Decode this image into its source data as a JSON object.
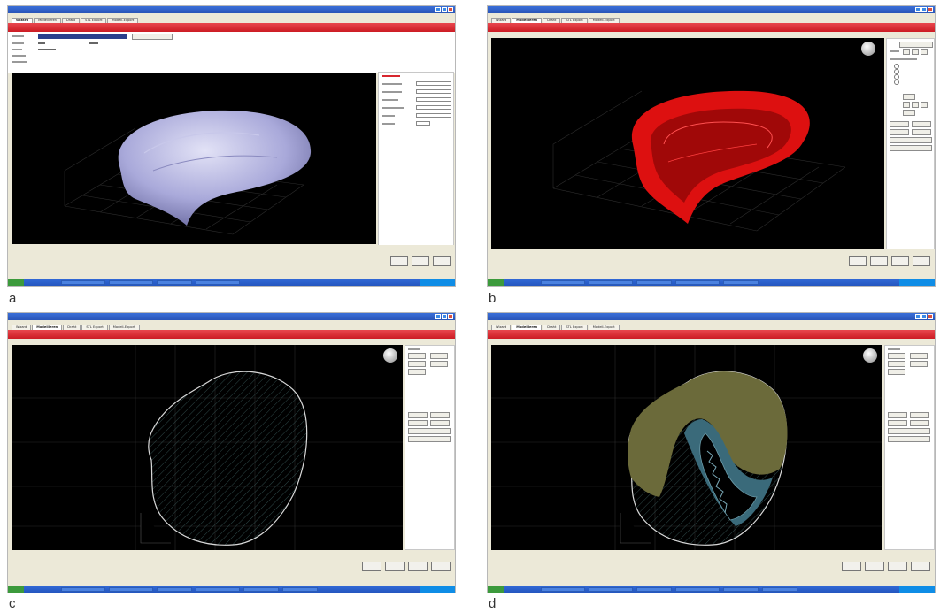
{
  "labels": [
    "a",
    "b",
    "c",
    "d"
  ],
  "tabs": [
    "Wizard",
    "Modellieren",
    "Draht",
    "STL Export",
    "Modell-Export"
  ],
  "colors": {
    "brand_red": "#d7262e",
    "viewport_bg": "#000000",
    "shape_lavender": "#a8a8d8",
    "shape_red": "#e01010",
    "shape_olive": "#6b6a3a",
    "shape_teal": "#3a6a7a"
  },
  "icons": [
    "orbit-icon"
  ]
}
